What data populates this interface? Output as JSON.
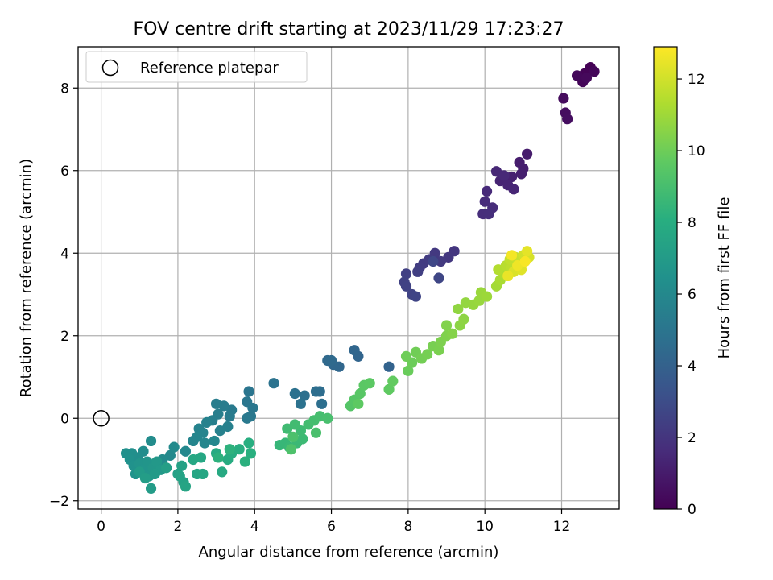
{
  "chart_data": {
    "type": "scatter",
    "title": "FOV centre drift starting at 2023/11/29 17:23:27",
    "xlabel": "Angular distance from reference (arcmin)",
    "ylabel": "Rotation from reference (arcmin)",
    "xlim": [
      -0.6,
      13.5
    ],
    "ylim": [
      -2.2,
      9.0
    ],
    "xticks": [
      0,
      2,
      4,
      6,
      8,
      10,
      12
    ],
    "yticks": [
      -2,
      0,
      2,
      4,
      6,
      8
    ],
    "grid": true,
    "legend": {
      "placement": "top-left",
      "entries": [
        "Reference platepar"
      ]
    },
    "reference_point": {
      "x": 0,
      "y": 0
    },
    "colorbar": {
      "label": "Hours from first FF file",
      "range": [
        0,
        12.9
      ],
      "ticks": [
        0,
        2,
        4,
        6,
        8,
        10,
        12
      ],
      "colormap": "viridis"
    },
    "series": [
      {
        "values": [
          {
            "x": 12.75,
            "y": 8.5,
            "h": 0.05
          },
          {
            "x": 12.6,
            "y": 8.35,
            "h": 0.1
          },
          {
            "x": 12.55,
            "y": 8.15,
            "h": 0.15
          },
          {
            "x": 12.85,
            "y": 8.4,
            "h": 0.2
          },
          {
            "x": 12.4,
            "y": 8.3,
            "h": 0.25
          },
          {
            "x": 12.65,
            "y": 8.25,
            "h": 0.3
          },
          {
            "x": 12.05,
            "y": 7.75,
            "h": 0.4
          },
          {
            "x": 12.1,
            "y": 7.4,
            "h": 0.45
          },
          {
            "x": 12.15,
            "y": 7.25,
            "h": 0.5
          },
          {
            "x": 11.1,
            "y": 6.4,
            "h": 1.0
          },
          {
            "x": 10.9,
            "y": 6.2,
            "h": 1.05
          },
          {
            "x": 11.0,
            "y": 6.05,
            "h": 1.1
          },
          {
            "x": 10.95,
            "y": 5.92,
            "h": 1.15
          },
          {
            "x": 10.7,
            "y": 5.85,
            "h": 1.2
          },
          {
            "x": 10.55,
            "y": 5.8,
            "h": 1.25
          },
          {
            "x": 10.4,
            "y": 5.75,
            "h": 1.3
          },
          {
            "x": 10.6,
            "y": 5.65,
            "h": 1.35
          },
          {
            "x": 10.75,
            "y": 5.55,
            "h": 1.4
          },
          {
            "x": 10.3,
            "y": 5.98,
            "h": 1.45
          },
          {
            "x": 10.5,
            "y": 5.88,
            "h": 1.5
          },
          {
            "x": 10.05,
            "y": 5.5,
            "h": 1.55
          },
          {
            "x": 10.0,
            "y": 5.25,
            "h": 1.6
          },
          {
            "x": 10.2,
            "y": 5.1,
            "h": 1.65
          },
          {
            "x": 9.95,
            "y": 4.95,
            "h": 1.7
          },
          {
            "x": 10.1,
            "y": 4.95,
            "h": 1.75
          },
          {
            "x": 9.2,
            "y": 4.05,
            "h": 2.05
          },
          {
            "x": 9.05,
            "y": 3.9,
            "h": 2.1
          },
          {
            "x": 8.7,
            "y": 4.0,
            "h": 2.15
          },
          {
            "x": 8.85,
            "y": 3.8,
            "h": 2.2
          },
          {
            "x": 8.55,
            "y": 3.85,
            "h": 2.25
          },
          {
            "x": 8.4,
            "y": 3.75,
            "h": 2.3
          },
          {
            "x": 8.3,
            "y": 3.65,
            "h": 2.35
          },
          {
            "x": 8.25,
            "y": 3.55,
            "h": 2.4
          },
          {
            "x": 7.95,
            "y": 3.5,
            "h": 2.45
          },
          {
            "x": 7.9,
            "y": 3.3,
            "h": 2.5
          },
          {
            "x": 7.95,
            "y": 3.2,
            "h": 2.55
          },
          {
            "x": 8.1,
            "y": 3.0,
            "h": 2.6
          },
          {
            "x": 8.2,
            "y": 2.95,
            "h": 2.65
          },
          {
            "x": 8.8,
            "y": 3.4,
            "h": 2.7
          },
          {
            "x": 8.65,
            "y": 3.8,
            "h": 2.75
          },
          {
            "x": 7.5,
            "y": 1.25,
            "h": 4.1
          },
          {
            "x": 6.7,
            "y": 1.5,
            "h": 4.2
          },
          {
            "x": 6.6,
            "y": 1.65,
            "h": 4.25
          },
          {
            "x": 6.2,
            "y": 1.25,
            "h": 4.3
          },
          {
            "x": 6.05,
            "y": 1.3,
            "h": 4.35
          },
          {
            "x": 5.9,
            "y": 1.4,
            "h": 4.4
          },
          {
            "x": 6.0,
            "y": 1.4,
            "h": 4.45
          },
          {
            "x": 5.7,
            "y": 0.65,
            "h": 4.6
          },
          {
            "x": 5.6,
            "y": 0.65,
            "h": 4.65
          },
          {
            "x": 5.75,
            "y": 0.35,
            "h": 4.7
          },
          {
            "x": 5.3,
            "y": 0.55,
            "h": 4.75
          },
          {
            "x": 5.05,
            "y": 0.6,
            "h": 4.8
          },
          {
            "x": 5.2,
            "y": 0.35,
            "h": 4.85
          },
          {
            "x": 4.5,
            "y": 0.85,
            "h": 4.9
          },
          {
            "x": 3.85,
            "y": 0.65,
            "h": 5.0
          },
          {
            "x": 3.8,
            "y": 0.4,
            "h": 5.05
          },
          {
            "x": 3.95,
            "y": 0.25,
            "h": 5.1
          },
          {
            "x": 3.9,
            "y": 0.05,
            "h": 5.15
          },
          {
            "x": 3.8,
            "y": 0.0,
            "h": 5.2
          },
          {
            "x": 3.4,
            "y": 0.2,
            "h": 5.25
          },
          {
            "x": 3.35,
            "y": 0.05,
            "h": 5.3
          },
          {
            "x": 3.2,
            "y": 0.3,
            "h": 5.35
          },
          {
            "x": 3.0,
            "y": 0.35,
            "h": 5.4
          },
          {
            "x": 3.05,
            "y": 0.1,
            "h": 5.45
          },
          {
            "x": 2.9,
            "y": -0.05,
            "h": 5.5
          },
          {
            "x": 3.3,
            "y": -0.2,
            "h": 5.55
          },
          {
            "x": 3.1,
            "y": -0.3,
            "h": 5.6
          },
          {
            "x": 2.75,
            "y": -0.1,
            "h": 5.65
          },
          {
            "x": 2.55,
            "y": -0.25,
            "h": 5.7
          },
          {
            "x": 2.65,
            "y": -0.35,
            "h": 5.75
          },
          {
            "x": 2.5,
            "y": -0.45,
            "h": 5.8
          },
          {
            "x": 2.4,
            "y": -0.55,
            "h": 5.85
          },
          {
            "x": 2.7,
            "y": -0.6,
            "h": 5.9
          },
          {
            "x": 2.95,
            "y": -0.55,
            "h": 5.95
          },
          {
            "x": 2.2,
            "y": -0.8,
            "h": 6.0
          },
          {
            "x": 1.8,
            "y": -0.9,
            "h": 6.05
          },
          {
            "x": 1.9,
            "y": -0.7,
            "h": 6.1
          },
          {
            "x": 1.6,
            "y": -1.0,
            "h": 6.15
          },
          {
            "x": 1.3,
            "y": -0.55,
            "h": 6.2
          },
          {
            "x": 1.1,
            "y": -0.8,
            "h": 6.25
          },
          {
            "x": 0.95,
            "y": -0.95,
            "h": 6.3
          },
          {
            "x": 0.8,
            "y": -0.85,
            "h": 6.35
          },
          {
            "x": 0.65,
            "y": -0.85,
            "h": 6.4
          },
          {
            "x": 0.75,
            "y": -1.0,
            "h": 6.45
          },
          {
            "x": 0.85,
            "y": -1.15,
            "h": 6.5
          },
          {
            "x": 0.9,
            "y": -1.35,
            "h": 6.55
          },
          {
            "x": 1.0,
            "y": -1.1,
            "h": 6.6
          },
          {
            "x": 1.1,
            "y": -1.25,
            "h": 6.65
          },
          {
            "x": 1.2,
            "y": -1.05,
            "h": 6.7
          },
          {
            "x": 1.25,
            "y": -1.4,
            "h": 6.75
          },
          {
            "x": 1.35,
            "y": -1.2,
            "h": 6.8
          },
          {
            "x": 1.45,
            "y": -1.05,
            "h": 6.85
          },
          {
            "x": 1.55,
            "y": -1.25,
            "h": 6.9
          },
          {
            "x": 1.4,
            "y": -1.35,
            "h": 6.95
          },
          {
            "x": 1.0,
            "y": -1.3,
            "h": 7.0
          },
          {
            "x": 1.3,
            "y": -1.7,
            "h": 7.05
          },
          {
            "x": 1.15,
            "y": -1.45,
            "h": 7.1
          },
          {
            "x": 1.7,
            "y": -1.2,
            "h": 7.2
          },
          {
            "x": 2.0,
            "y": -1.35,
            "h": 7.3
          },
          {
            "x": 2.1,
            "y": -1.15,
            "h": 7.35
          },
          {
            "x": 2.15,
            "y": -1.55,
            "h": 7.4
          },
          {
            "x": 2.05,
            "y": -1.4,
            "h": 7.45
          },
          {
            "x": 2.2,
            "y": -1.65,
            "h": 7.5
          },
          {
            "x": 2.5,
            "y": -1.35,
            "h": 7.55
          },
          {
            "x": 2.65,
            "y": -1.35,
            "h": 7.6
          },
          {
            "x": 2.4,
            "y": -1.0,
            "h": 7.65
          },
          {
            "x": 2.6,
            "y": -0.95,
            "h": 7.7
          },
          {
            "x": 3.15,
            "y": -1.3,
            "h": 7.8
          },
          {
            "x": 3.0,
            "y": -0.85,
            "h": 7.85
          },
          {
            "x": 3.3,
            "y": -1.0,
            "h": 7.9
          },
          {
            "x": 3.4,
            "y": -0.85,
            "h": 7.95
          },
          {
            "x": 3.6,
            "y": -0.75,
            "h": 8.0
          },
          {
            "x": 3.85,
            "y": -0.6,
            "h": 8.05
          },
          {
            "x": 3.9,
            "y": -0.85,
            "h": 8.1
          },
          {
            "x": 3.75,
            "y": -1.05,
            "h": 8.15
          },
          {
            "x": 3.05,
            "y": -0.95,
            "h": 8.2
          },
          {
            "x": 3.35,
            "y": -0.75,
            "h": 8.25
          },
          {
            "x": 4.65,
            "y": -0.65,
            "h": 8.5
          },
          {
            "x": 4.8,
            "y": -0.6,
            "h": 8.55
          },
          {
            "x": 4.9,
            "y": -0.7,
            "h": 8.6
          },
          {
            "x": 5.1,
            "y": -0.6,
            "h": 8.65
          },
          {
            "x": 5.25,
            "y": -0.5,
            "h": 8.7
          },
          {
            "x": 5.2,
            "y": -0.3,
            "h": 8.75
          },
          {
            "x": 4.85,
            "y": -0.25,
            "h": 8.8
          },
          {
            "x": 5.05,
            "y": -0.15,
            "h": 8.85
          },
          {
            "x": 5.4,
            "y": -0.15,
            "h": 8.9
          },
          {
            "x": 5.55,
            "y": -0.05,
            "h": 8.95
          },
          {
            "x": 5.7,
            "y": 0.05,
            "h": 9.0
          },
          {
            "x": 5.9,
            "y": 0.0,
            "h": 9.05
          },
          {
            "x": 5.6,
            "y": -0.35,
            "h": 9.1
          },
          {
            "x": 5.0,
            "y": -0.45,
            "h": 9.15
          },
          {
            "x": 4.95,
            "y": -0.75,
            "h": 9.2
          },
          {
            "x": 6.5,
            "y": 0.3,
            "h": 9.4
          },
          {
            "x": 6.6,
            "y": 0.45,
            "h": 9.45
          },
          {
            "x": 6.75,
            "y": 0.6,
            "h": 9.5
          },
          {
            "x": 6.85,
            "y": 0.8,
            "h": 9.55
          },
          {
            "x": 7.0,
            "y": 0.85,
            "h": 9.6
          },
          {
            "x": 6.7,
            "y": 0.35,
            "h": 9.65
          },
          {
            "x": 7.5,
            "y": 0.7,
            "h": 9.7
          },
          {
            "x": 7.6,
            "y": 0.9,
            "h": 9.75
          },
          {
            "x": 8.0,
            "y": 1.15,
            "h": 9.9
          },
          {
            "x": 8.1,
            "y": 1.35,
            "h": 9.95
          },
          {
            "x": 7.95,
            "y": 1.5,
            "h": 10.0
          },
          {
            "x": 8.2,
            "y": 1.6,
            "h": 10.05
          },
          {
            "x": 8.35,
            "y": 1.45,
            "h": 10.1
          },
          {
            "x": 8.5,
            "y": 1.55,
            "h": 10.15
          },
          {
            "x": 8.65,
            "y": 1.75,
            "h": 10.2
          },
          {
            "x": 8.8,
            "y": 1.65,
            "h": 10.25
          },
          {
            "x": 8.85,
            "y": 1.85,
            "h": 10.3
          },
          {
            "x": 9.0,
            "y": 2.0,
            "h": 10.35
          },
          {
            "x": 9.0,
            "y": 2.25,
            "h": 10.4
          },
          {
            "x": 9.15,
            "y": 2.05,
            "h": 10.45
          },
          {
            "x": 9.35,
            "y": 2.25,
            "h": 10.6
          },
          {
            "x": 9.45,
            "y": 2.4,
            "h": 10.65
          },
          {
            "x": 9.3,
            "y": 2.65,
            "h": 10.7
          },
          {
            "x": 9.5,
            "y": 2.8,
            "h": 10.75
          },
          {
            "x": 9.7,
            "y": 2.75,
            "h": 10.8
          },
          {
            "x": 9.85,
            "y": 2.85,
            "h": 10.85
          },
          {
            "x": 9.9,
            "y": 3.05,
            "h": 10.9
          },
          {
            "x": 10.05,
            "y": 2.95,
            "h": 10.95
          },
          {
            "x": 10.3,
            "y": 3.2,
            "h": 11.1
          },
          {
            "x": 10.4,
            "y": 3.35,
            "h": 11.2
          },
          {
            "x": 10.5,
            "y": 3.5,
            "h": 11.3
          },
          {
            "x": 10.35,
            "y": 3.6,
            "h": 11.4
          },
          {
            "x": 10.55,
            "y": 3.7,
            "h": 11.5
          },
          {
            "x": 10.7,
            "y": 3.65,
            "h": 11.6
          },
          {
            "x": 10.65,
            "y": 3.85,
            "h": 11.7
          },
          {
            "x": 10.8,
            "y": 3.9,
            "h": 11.8
          },
          {
            "x": 10.9,
            "y": 3.75,
            "h": 11.9
          },
          {
            "x": 11.0,
            "y": 3.95,
            "h": 12.0
          },
          {
            "x": 11.15,
            "y": 3.9,
            "h": 12.1
          },
          {
            "x": 10.75,
            "y": 3.55,
            "h": 12.2
          },
          {
            "x": 10.95,
            "y": 3.6,
            "h": 12.3
          },
          {
            "x": 11.1,
            "y": 4.05,
            "h": 12.4
          },
          {
            "x": 10.6,
            "y": 3.45,
            "h": 12.5
          },
          {
            "x": 10.85,
            "y": 3.7,
            "h": 12.6
          },
          {
            "x": 10.7,
            "y": 3.95,
            "h": 12.7
          },
          {
            "x": 11.05,
            "y": 3.8,
            "h": 12.8
          }
        ]
      }
    ]
  }
}
